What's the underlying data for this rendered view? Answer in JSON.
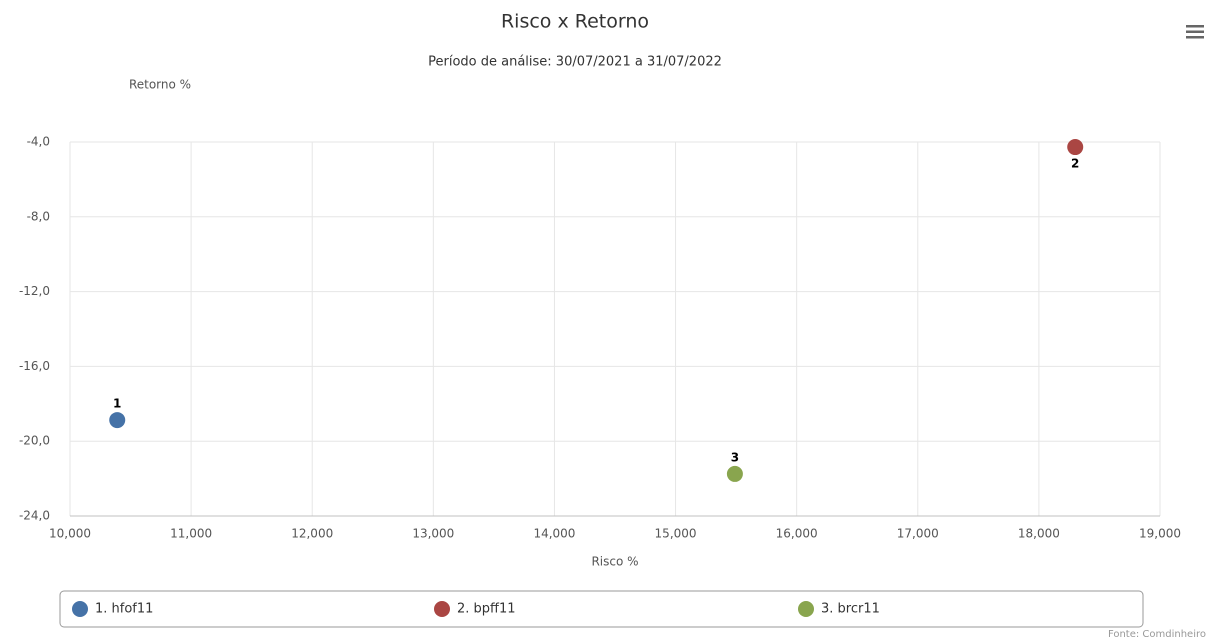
{
  "chart_data": {
    "type": "scatter",
    "title": "Risco x Retorno",
    "subtitle": "Período de análise: 30/07/2021 a 31/07/2022",
    "x_label": "Risco %",
    "y_label": "Retorno %",
    "source": "Fonte: Comdinheiro",
    "xlim": [
      10,
      19
    ],
    "xticks": [
      {
        "value": 10,
        "label": "10,000"
      },
      {
        "value": 11,
        "label": "11,000"
      },
      {
        "value": 12,
        "label": "12,000"
      },
      {
        "value": 13,
        "label": "13,000"
      },
      {
        "value": 14,
        "label": "14,000"
      },
      {
        "value": 15,
        "label": "15,000"
      },
      {
        "value": 16,
        "label": "16,000"
      },
      {
        "value": 17,
        "label": "17,000"
      },
      {
        "value": 18,
        "label": "18,000"
      },
      {
        "value": 19,
        "label": "19,000"
      }
    ],
    "ylim": [
      -24,
      -4
    ],
    "yticks": [
      {
        "value": -4,
        "label": "-4,0"
      },
      {
        "value": -8,
        "label": "-8,0"
      },
      {
        "value": -12,
        "label": "-12,0"
      },
      {
        "value": -16,
        "label": "-16,0"
      },
      {
        "value": -20,
        "label": "-20,0"
      },
      {
        "value": -24,
        "label": "-24,0"
      }
    ],
    "grid": true,
    "series": [
      {
        "name": "1. hfof11",
        "point_label": "1",
        "color": "#4572a7",
        "x": [
          10.39
        ],
        "values": [
          -18.87
        ]
      },
      {
        "name": "2. bpff11",
        "point_label": "2",
        "color": "#aa4643",
        "x": [
          18.3
        ],
        "values": [
          -4.27
        ]
      },
      {
        "name": "3. brcr11",
        "point_label": "3",
        "color": "#89a54e",
        "x": [
          15.49
        ],
        "values": [
          -21.75
        ]
      }
    ]
  }
}
